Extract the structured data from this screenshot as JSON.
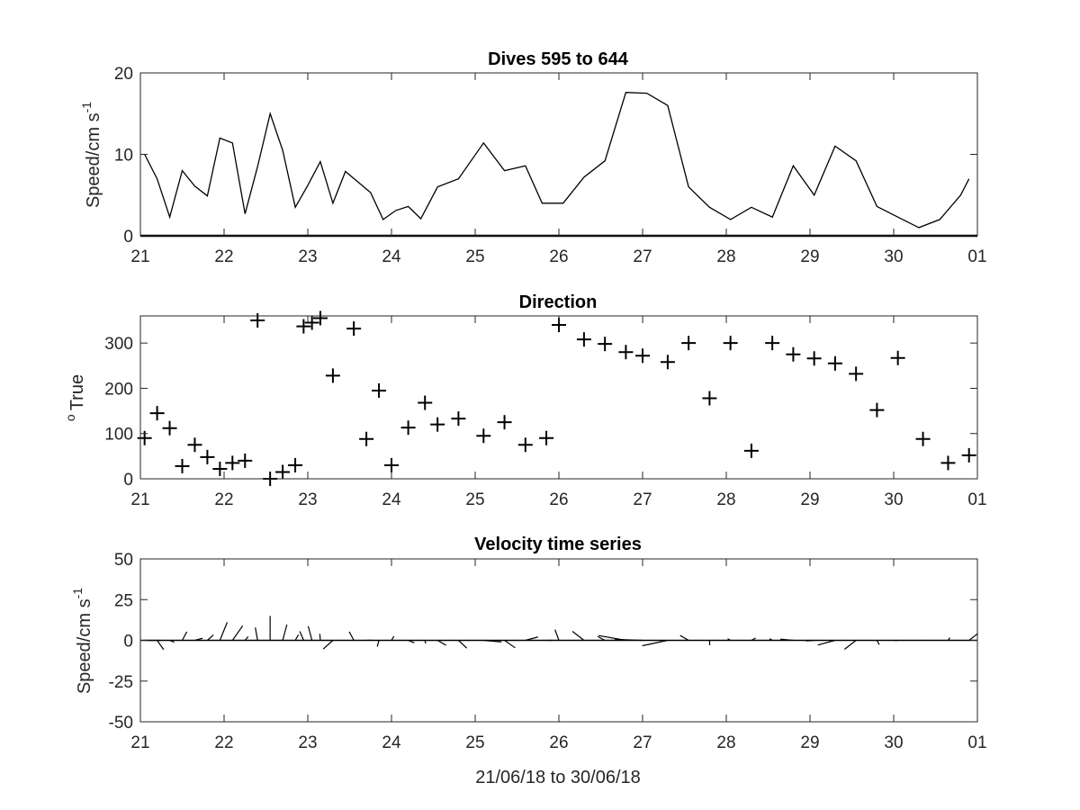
{
  "figure": {
    "xlabel": "21/06/18 to 30/06/18",
    "x_tick_labels": [
      "21",
      "22",
      "23",
      "24",
      "25",
      "26",
      "27",
      "28",
      "29",
      "30",
      "01"
    ],
    "xlim_days": [
      21,
      31
    ],
    "line_color": "#000000",
    "axes_color": "#262626"
  },
  "chart_data": [
    {
      "type": "line",
      "title": "Dives 595 to 644",
      "ylabel": "Speed/cm s",
      "ylabel_superscript": "-1",
      "ylim": [
        0,
        20
      ],
      "yticks": [
        0,
        10,
        20
      ],
      "grid": false,
      "series": [
        {
          "x": [
            21.05,
            21.2,
            21.35,
            21.5,
            21.65,
            21.8,
            21.95,
            22.1,
            22.25,
            22.4,
            22.55,
            22.7,
            22.85,
            23.0,
            23.15,
            23.3,
            23.45,
            23.6,
            23.75,
            23.9,
            24.05,
            24.2,
            24.35,
            24.55,
            24.8,
            25.1,
            25.35,
            25.6,
            25.8,
            26.05,
            26.3,
            26.55,
            26.8,
            27.05,
            27.3,
            27.55,
            27.8,
            28.05,
            28.3,
            28.55,
            28.8,
            29.05,
            29.3,
            29.55,
            29.8,
            30.05,
            30.3,
            30.55,
            30.8,
            30.9
          ],
          "y": [
            10.0,
            7.0,
            2.3,
            8.0,
            6.1,
            4.9,
            12.0,
            11.4,
            2.7,
            8.5,
            15.0,
            10.5,
            3.5,
            6.2,
            9.1,
            4.0,
            7.9,
            6.6,
            5.3,
            2.0,
            3.1,
            3.6,
            2.1,
            6.0,
            7.0,
            11.4,
            8.0,
            8.6,
            4.0,
            4.0,
            7.2,
            9.2,
            17.6,
            17.5,
            16.0,
            6.0,
            3.5,
            2.0,
            3.5,
            2.3,
            8.6,
            5.0,
            11.0,
            9.2,
            3.6,
            2.3,
            1.0,
            2.0,
            5.0,
            7.0
          ]
        }
      ]
    },
    {
      "type": "scatter",
      "title": "Direction",
      "ylabel": "True",
      "ylabel_superscript": "o",
      "ylim": [
        0,
        360
      ],
      "yticks": [
        0,
        100,
        200,
        300
      ],
      "marker": "+",
      "grid": false,
      "series": [
        {
          "x": [
            21.05,
            21.2,
            21.35,
            21.5,
            21.65,
            21.8,
            21.95,
            22.1,
            22.25,
            22.4,
            22.55,
            22.7,
            22.85,
            22.95,
            23.05,
            23.15,
            23.3,
            23.55,
            23.7,
            23.85,
            24.0,
            24.2,
            24.4,
            24.55,
            24.8,
            25.1,
            25.35,
            25.6,
            25.85,
            26.0,
            26.3,
            26.55,
            26.8,
            27.0,
            27.3,
            27.55,
            27.8,
            28.05,
            28.3,
            28.55,
            28.8,
            29.05,
            29.3,
            29.55,
            29.8,
            30.05,
            30.35,
            30.65,
            30.9
          ],
          "y": [
            90,
            145,
            112,
            28,
            75,
            48,
            22,
            35,
            40,
            350,
            0,
            15,
            30,
            337,
            345,
            355,
            228,
            332,
            88,
            195,
            30,
            113,
            168,
            120,
            133,
            95,
            125,
            75,
            90,
            340,
            308,
            298,
            280,
            272,
            258,
            300,
            178,
            300,
            62,
            300,
            275,
            266,
            255,
            232,
            152,
            267,
            88,
            35,
            52
          ]
        }
      ]
    },
    {
      "type": "line",
      "subtype": "stick_vectors",
      "title": "Velocity time series",
      "ylabel": "Speed/cm s",
      "ylabel_superscript": "-1",
      "ylim": [
        -50,
        50
      ],
      "yticks": [
        -50,
        -25,
        0,
        25,
        50
      ],
      "grid": false,
      "series": [
        {
          "x": [
            21.05,
            21.2,
            21.35,
            21.5,
            21.65,
            21.8,
            21.95,
            22.1,
            22.25,
            22.4,
            22.55,
            22.7,
            22.85,
            22.95,
            23.05,
            23.15,
            23.3,
            23.55,
            23.7,
            23.85,
            24.0,
            24.2,
            24.4,
            24.55,
            24.8,
            25.1,
            25.35,
            25.6,
            25.85,
            26.0,
            26.3,
            26.55,
            26.8,
            27.0,
            27.3,
            27.55,
            27.8,
            28.05,
            28.3,
            28.55,
            28.8,
            29.05,
            29.3,
            29.55,
            29.8,
            30.05,
            30.35,
            30.65,
            30.9
          ],
          "speed": [
            10,
            7,
            3,
            6,
            5,
            5,
            12,
            11,
            3,
            8,
            15,
            10,
            4,
            6,
            9,
            4,
            8,
            6,
            3,
            4,
            3,
            4,
            2,
            6,
            7,
            11,
            8,
            8,
            4,
            7,
            9,
            5,
            17,
            17,
            16,
            6,
            3,
            2,
            3,
            2,
            8,
            5,
            11,
            9,
            3,
            2,
            1,
            2,
            7
          ],
          "direction": [
            90,
            145,
            112,
            28,
            75,
            48,
            22,
            35,
            40,
            350,
            0,
            15,
            30,
            337,
            345,
            355,
            228,
            332,
            88,
            195,
            30,
            113,
            168,
            120,
            133,
            95,
            125,
            75,
            90,
            340,
            308,
            298,
            280,
            272,
            258,
            300,
            178,
            300,
            62,
            300,
            275,
            266,
            255,
            232,
            152,
            267,
            88,
            35,
            52
          ]
        }
      ]
    }
  ]
}
